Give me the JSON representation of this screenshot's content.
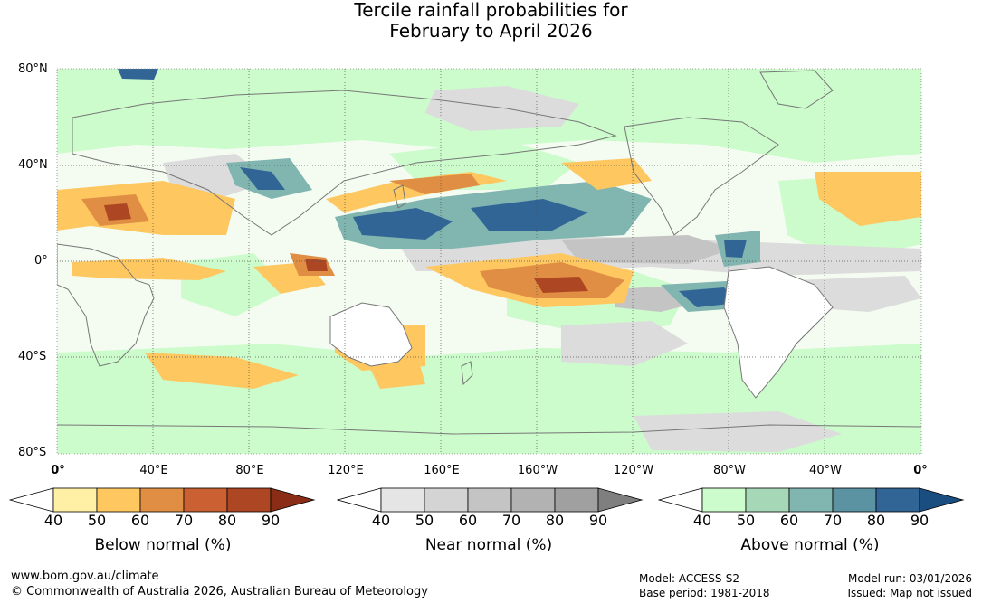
{
  "title": {
    "line1": "Tercile rainfall probabilities for",
    "line2": "February to April 2026"
  },
  "map": {
    "lat_labels": [
      "80°N",
      "40°N",
      "0°",
      "40°S",
      "80°S"
    ],
    "lon_labels": [
      "0°",
      "40°E",
      "80°E",
      "120°E",
      "160°E",
      "160°W",
      "120°W",
      "80°W",
      "40°W",
      "0°"
    ],
    "land_color": "#ffffff",
    "coast_color": "#777777"
  },
  "legends": [
    {
      "name": "below",
      "title": "Below normal (%)",
      "ticks": [
        "40",
        "50",
        "60",
        "70",
        "80",
        "90"
      ],
      "colors": [
        "#fff0a6",
        "#fec760",
        "#e08e44",
        "#cb6133",
        "#ad4622",
        "#8b2d16"
      ]
    },
    {
      "name": "near",
      "title": "Near normal (%)",
      "ticks": [
        "40",
        "50",
        "60",
        "70",
        "80",
        "90"
      ],
      "colors": [
        "#e5e5e5",
        "#d4d4d4",
        "#c4c4c4",
        "#b2b2b2",
        "#a0a0a0",
        "#7f7f7f"
      ]
    },
    {
      "name": "above",
      "title": "Above normal (%)",
      "ticks": [
        "40",
        "50",
        "60",
        "70",
        "80",
        "90"
      ],
      "colors": [
        "#ccfbcc",
        "#a6d8b8",
        "#80b5b0",
        "#5b93a2",
        "#306596",
        "#1a4d80"
      ]
    }
  ],
  "footer": {
    "website": "www.bom.gov.au/climate",
    "copyright": "© Commonwealth of Australia 2026, Australian Bureau of Meteorology",
    "model": "Model: ACCESS-S2",
    "base_period": "Base period: 1981-2018",
    "model_run": "Model run: 03/01/2026",
    "issued": "Issued: Map not issued"
  }
}
